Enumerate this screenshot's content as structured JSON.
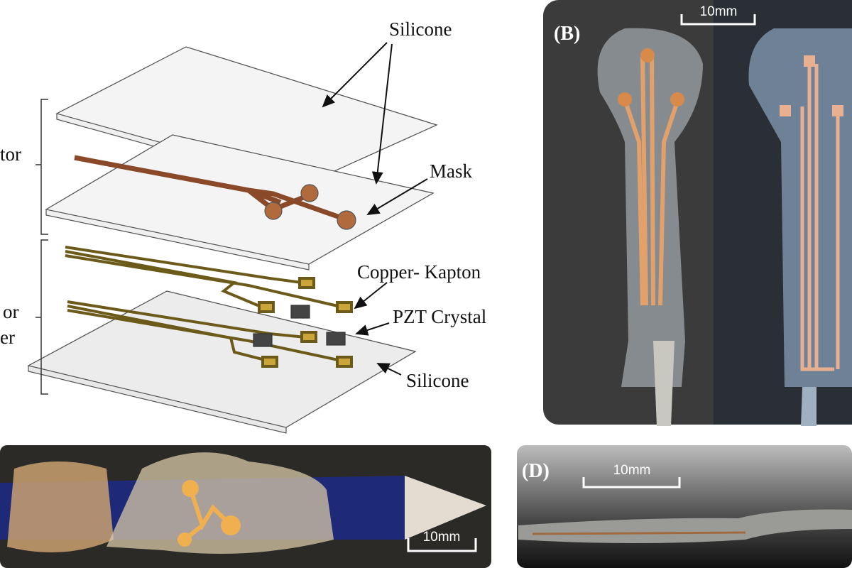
{
  "panel_a": {
    "labels": [
      "Silicone",
      "Mask",
      "Copper- Kapton",
      "PZT Crystal",
      "Silicone"
    ],
    "side_labels": [
      "tor",
      "or",
      "er"
    ]
  },
  "panel_b": {
    "label": "(B)",
    "scale": "10mm"
  },
  "panel_c": {
    "scale": "10mm"
  },
  "panel_d": {
    "label": "(D)",
    "scale": "10mm"
  }
}
